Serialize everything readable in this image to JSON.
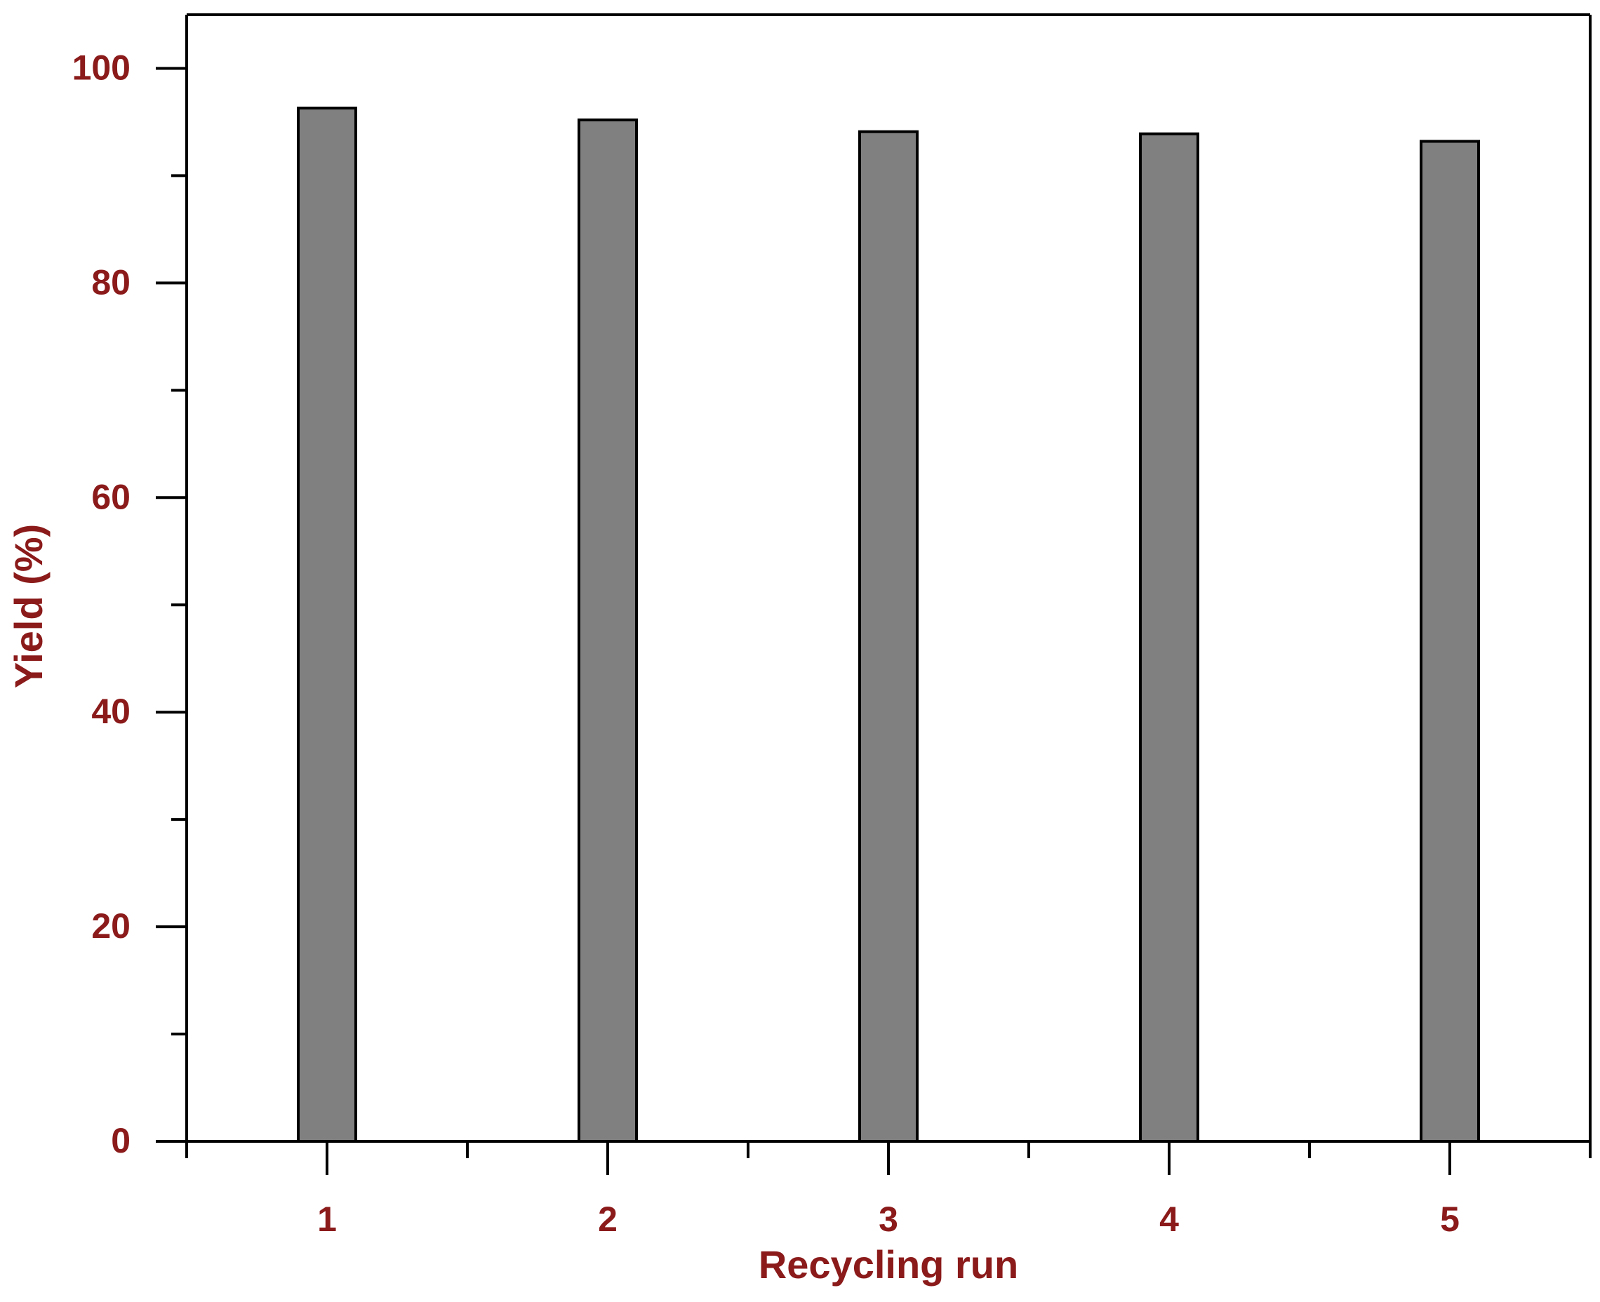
{
  "chart_data": {
    "type": "bar",
    "title": "",
    "xlabel": "Recycling run",
    "ylabel": "Yield (%)",
    "categories": [
      "1",
      "2",
      "3",
      "4",
      "5"
    ],
    "values": [
      96.3,
      95.2,
      94.1,
      93.9,
      93.2
    ],
    "ylim": [
      0,
      105
    ],
    "y_major_ticks": [
      0,
      20,
      40,
      60,
      80,
      100
    ],
    "y_tick_labels": [
      "0",
      "20",
      "40",
      "60",
      "80",
      "100"
    ],
    "y_minor_ticks": [
      10,
      30,
      50,
      70,
      90
    ],
    "grid": false,
    "legend": "none",
    "colors": {
      "bar_fill": "#808080",
      "bar_stroke": "#000000",
      "label_text": "#8b1a1a",
      "axis": "#000000"
    }
  }
}
